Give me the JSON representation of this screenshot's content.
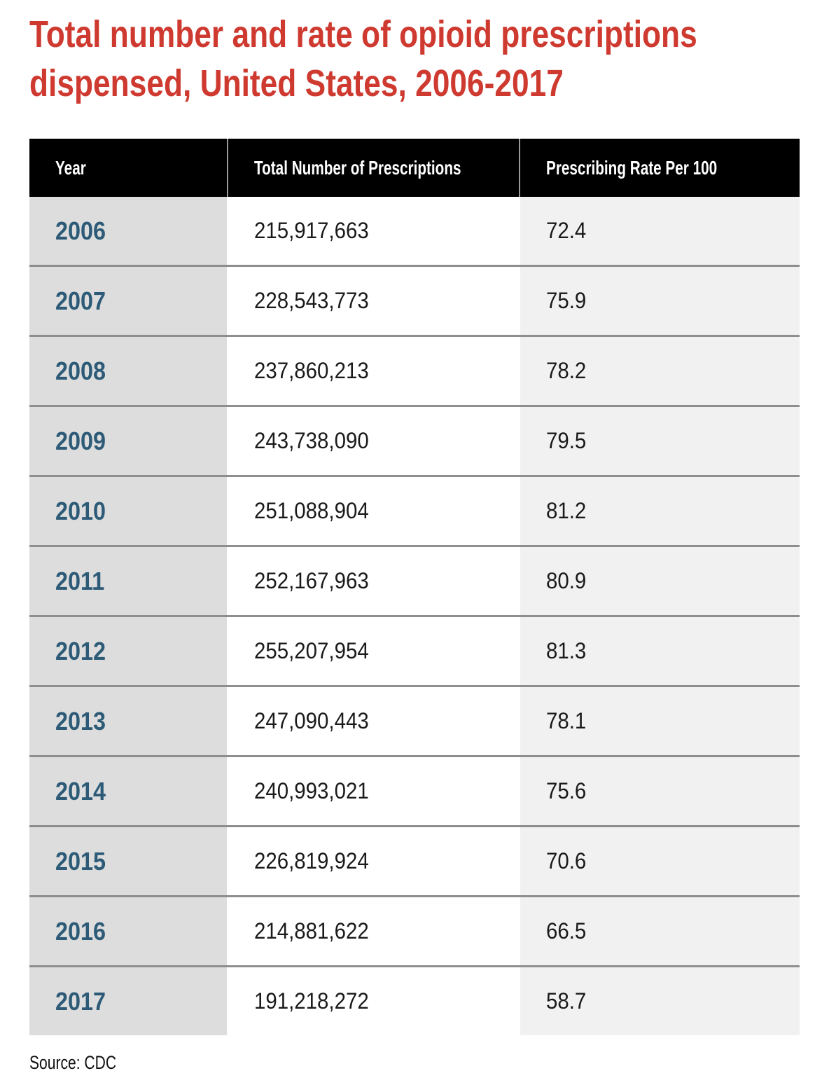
{
  "title": {
    "full": "Total number and rate of opioid prescriptions dispensed, United States, 2006-2017",
    "line1": "Total number and rate of opioid prescriptions",
    "line2": "dispensed, United States, 2006-2017"
  },
  "source": "Source: CDC",
  "colors": {
    "title_red": "#cf3a30",
    "year_blue": "#2d5b77",
    "header_bg": "#000000",
    "header_text": "#ffffff",
    "year_col_bg": "#dddddd",
    "total_col_bg": "#ffffff",
    "rate_col_bg": "#f1f1f1",
    "row_divider": "#8e8e8e"
  },
  "chart_data": {
    "type": "table",
    "title": "Total number and rate of opioid prescriptions dispensed, United States, 2006-2017",
    "columns": [
      "Year",
      "Total Number of Prescriptions",
      "Prescribing Rate Per 100"
    ],
    "rows": [
      {
        "year": "2006",
        "total_prescriptions": "215,917,663",
        "rate_per_100": "72.4"
      },
      {
        "year": "2007",
        "total_prescriptions": "228,543,773",
        "rate_per_100": "75.9"
      },
      {
        "year": "2008",
        "total_prescriptions": "237,860,213",
        "rate_per_100": "78.2"
      },
      {
        "year": "2009",
        "total_prescriptions": "243,738,090",
        "rate_per_100": "79.5"
      },
      {
        "year": "2010",
        "total_prescriptions": "251,088,904",
        "rate_per_100": "81.2"
      },
      {
        "year": "2011",
        "total_prescriptions": "252,167,963",
        "rate_per_100": "80.9"
      },
      {
        "year": "2012",
        "total_prescriptions": "255,207,954",
        "rate_per_100": "81.3"
      },
      {
        "year": "2013",
        "total_prescriptions": "247,090,443",
        "rate_per_100": "78.1"
      },
      {
        "year": "2014",
        "total_prescriptions": "240,993,021",
        "rate_per_100": "75.6"
      },
      {
        "year": "2015",
        "total_prescriptions": "226,819,924",
        "rate_per_100": "70.6"
      },
      {
        "year": "2016",
        "total_prescriptions": "214,881,622",
        "rate_per_100": "66.5"
      },
      {
        "year": "2017",
        "total_prescriptions": "191,218,272",
        "rate_per_100": "58.7"
      }
    ],
    "source": "CDC"
  }
}
